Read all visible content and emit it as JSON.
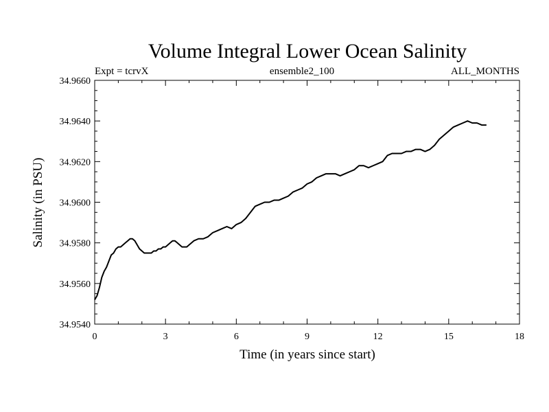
{
  "chart_data": {
    "type": "line",
    "title": "Volume Integral Lower Ocean Salinity",
    "subtitle_left": "Expt = tcrvX",
    "subtitle_center": "ensemble2_100",
    "subtitle_right": "ALL_MONTHS",
    "xlabel": "Time (in years since start)",
    "ylabel": "Salinity (in PSU)",
    "xlim": [
      0,
      18
    ],
    "ylim": [
      34.954,
      34.966
    ],
    "x_ticks": [
      "0",
      "3",
      "6",
      "9",
      "12",
      "15",
      "18"
    ],
    "y_ticks": [
      "34.9540",
      "34.9560",
      "34.9580",
      "34.9600",
      "34.9620",
      "34.9640",
      "34.9660"
    ],
    "grid": false,
    "series": [
      {
        "x": [
          0.0,
          0.1,
          0.2,
          0.3,
          0.4,
          0.5,
          0.6,
          0.7,
          0.8,
          0.9,
          1.0,
          1.1,
          1.2,
          1.3,
          1.4,
          1.5,
          1.6,
          1.7,
          1.8,
          1.9,
          2.0,
          2.1,
          2.2,
          2.3,
          2.4,
          2.5,
          2.6,
          2.7,
          2.8,
          2.9,
          3.0,
          3.1,
          3.2,
          3.3,
          3.4,
          3.5,
          3.6,
          3.7,
          3.8,
          3.9,
          4.0,
          4.2,
          4.4,
          4.6,
          4.8,
          5.0,
          5.2,
          5.4,
          5.6,
          5.8,
          6.0,
          6.2,
          6.4,
          6.6,
          6.8,
          7.0,
          7.2,
          7.4,
          7.6,
          7.8,
          8.0,
          8.2,
          8.4,
          8.6,
          8.8,
          9.0,
          9.2,
          9.4,
          9.6,
          9.8,
          10.0,
          10.2,
          10.4,
          10.6,
          10.8,
          11.0,
          11.2,
          11.4,
          11.6,
          11.8,
          12.0,
          12.2,
          12.4,
          12.6,
          12.8,
          13.0,
          13.2,
          13.4,
          13.6,
          13.8,
          14.0,
          14.2,
          14.4,
          14.6,
          14.8,
          15.0,
          15.2,
          15.4,
          15.6,
          15.8,
          16.0,
          16.2,
          16.4,
          16.6
        ],
        "y": [
          34.9552,
          34.9554,
          34.9558,
          34.9563,
          34.9566,
          34.9568,
          34.9571,
          34.9574,
          34.9575,
          34.9577,
          34.9578,
          34.9578,
          34.9579,
          34.958,
          34.9581,
          34.9582,
          34.9582,
          34.9581,
          34.9579,
          34.9577,
          34.9576,
          34.9575,
          34.9575,
          34.9575,
          34.9575,
          34.9576,
          34.9576,
          34.9577,
          34.9577,
          34.9578,
          34.9578,
          34.9579,
          34.958,
          34.9581,
          34.9581,
          34.958,
          34.9579,
          34.9578,
          34.9578,
          34.9578,
          34.9579,
          34.9581,
          34.9582,
          34.9582,
          34.9583,
          34.9585,
          34.9586,
          34.9587,
          34.9588,
          34.9587,
          34.9589,
          34.959,
          34.9592,
          34.9595,
          34.9598,
          34.9599,
          34.96,
          34.96,
          34.9601,
          34.9601,
          34.9602,
          34.9603,
          34.9605,
          34.9606,
          34.9607,
          34.9609,
          34.961,
          34.9612,
          34.9613,
          34.9614,
          34.9614,
          34.9614,
          34.9613,
          34.9614,
          34.9615,
          34.9616,
          34.9618,
          34.9618,
          34.9617,
          34.9618,
          34.9619,
          34.962,
          34.9623,
          34.9624,
          34.9624,
          34.9624,
          34.9625,
          34.9625,
          34.9626,
          34.9626,
          34.9625,
          34.9626,
          34.9628,
          34.9631,
          34.9633,
          34.9635,
          34.9637,
          34.9638,
          34.9639,
          34.964,
          34.9639,
          34.9639,
          34.9638,
          34.9638
        ]
      }
    ],
    "line_color": "#000000"
  }
}
